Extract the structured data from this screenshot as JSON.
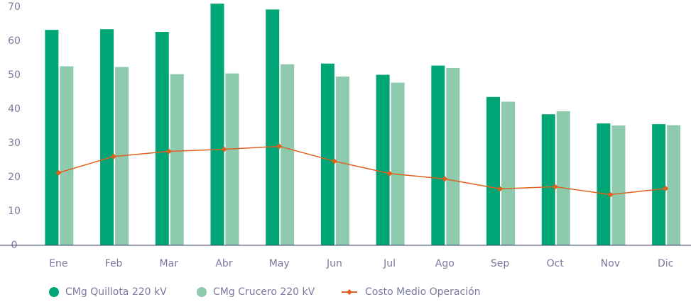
{
  "chart_data": {
    "type": "bar_line",
    "categories": [
      "Ene",
      "Feb",
      "Mar",
      "Abr",
      "May",
      "Jun",
      "Jul",
      "Ago",
      "Sep",
      "Oct",
      "Nov",
      "Dic"
    ],
    "series": [
      {
        "name": "CMg Quillota 220 kV",
        "color": "#00a676",
        "type": "bar",
        "values": [
          63.3,
          63.5,
          62.7,
          71.0,
          69.3,
          53.4,
          50.1,
          52.8,
          43.6,
          38.5,
          35.8,
          35.6
        ]
      },
      {
        "name": "CMg Crucero 220 kV",
        "color": "#8ecaae",
        "type": "bar",
        "values": [
          52.6,
          52.4,
          50.3,
          50.5,
          53.2,
          49.6,
          47.8,
          52.1,
          42.2,
          39.4,
          35.2,
          35.3
        ]
      },
      {
        "name": "Costo Medio Operación",
        "color": "#e0601e",
        "type": "line",
        "values": [
          21.3,
          26.1,
          27.6,
          28.2,
          29.1,
          24.7,
          21.1,
          19.5,
          16.6,
          17.2,
          14.9,
          16.7
        ]
      }
    ],
    "ylim": [
      0,
      70
    ],
    "yticks": [
      0,
      10,
      20,
      30,
      40,
      50,
      60,
      70
    ],
    "grid": false,
    "legend": "bottom"
  }
}
